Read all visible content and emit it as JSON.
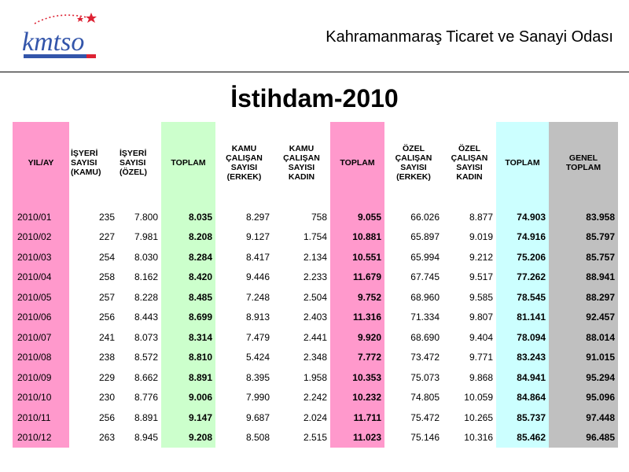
{
  "header": {
    "org_name": "Kahramanmaraş Ticaret ve Sanayi Odası",
    "logo_text": "kmtso",
    "logo_subtext": "Kahramanmaraş Ticaret ve Sanayi Odası"
  },
  "title": "İstihdam-2010",
  "colors": {
    "pink": "#ff99cc",
    "green": "#ccffcc",
    "cyan": "#ccffff",
    "gray": "#c0c0c0",
    "logo_blue": "#3355aa",
    "logo_red": "#dd2233"
  },
  "table": {
    "headers": [
      [
        "YIL/AY"
      ],
      [
        "İŞYERİ",
        "SAYISI",
        "(KAMU)"
      ],
      [
        "İŞYERİ",
        "SAYISI",
        "(ÖZEL)"
      ],
      [
        "TOPLAM"
      ],
      [
        "KAMU",
        "ÇALIŞAN",
        "SAYISI",
        "(ERKEK)"
      ],
      [
        "KAMU",
        "ÇALIŞAN",
        "SAYISI",
        "KADIN"
      ],
      [
        "TOPLAM"
      ],
      [
        "ÖZEL",
        "ÇALIŞAN",
        "SAYISI",
        "(ERKEK)"
      ],
      [
        "ÖZEL",
        "ÇALIŞAN",
        "SAYISI",
        "KADIN"
      ],
      [
        "TOPLAM"
      ],
      [
        "GENEL",
        "TOPLAM"
      ]
    ],
    "rows": [
      [
        "2010/01",
        "235",
        "7.800",
        "8.035",
        "8.297",
        "758",
        "9.055",
        "66.026",
        "8.877",
        "74.903",
        "83.958"
      ],
      [
        "2010/02",
        "227",
        "7.981",
        "8.208",
        "9.127",
        "1.754",
        "10.881",
        "65.897",
        "9.019",
        "74.916",
        "85.797"
      ],
      [
        "2010/03",
        "254",
        "8.030",
        "8.284",
        "8.417",
        "2.134",
        "10.551",
        "65.994",
        "9.212",
        "75.206",
        "85.757"
      ],
      [
        "2010/04",
        "258",
        "8.162",
        "8.420",
        "9.446",
        "2.233",
        "11.679",
        "67.745",
        "9.517",
        "77.262",
        "88.941"
      ],
      [
        "2010/05",
        "257",
        "8.228",
        "8.485",
        "7.248",
        "2.504",
        "9.752",
        "68.960",
        "9.585",
        "78.545",
        "88.297"
      ],
      [
        "2010/06",
        "256",
        "8.443",
        "8.699",
        "8.913",
        "2.403",
        "11.316",
        "71.334",
        "9.807",
        "81.141",
        "92.457"
      ],
      [
        "2010/07",
        "241",
        "8.073",
        "8.314",
        "7.479",
        "2.441",
        "9.920",
        "68.690",
        "9.404",
        "78.094",
        "88.014"
      ],
      [
        "2010/08",
        "238",
        "8.572",
        "8.810",
        "5.424",
        "2.348",
        "7.772",
        "73.472",
        "9.771",
        "83.243",
        "91.015"
      ],
      [
        "2010/09",
        "229",
        "8.662",
        "8.891",
        "8.395",
        "1.958",
        "10.353",
        "75.073",
        "9.868",
        "84.941",
        "95.294"
      ],
      [
        "2010/10",
        "230",
        "8.776",
        "9.006",
        "7.990",
        "2.242",
        "10.232",
        "74.805",
        "10.059",
        "84.864",
        "95.096"
      ],
      [
        "2010/11",
        "256",
        "8.891",
        "9.147",
        "9.687",
        "2.024",
        "11.711",
        "75.472",
        "10.265",
        "85.737",
        "97.448"
      ],
      [
        "2010/12",
        "263",
        "8.945",
        "9.208",
        "8.508",
        "2.515",
        "11.023",
        "75.146",
        "10.316",
        "85.462",
        "96.485"
      ]
    ]
  }
}
